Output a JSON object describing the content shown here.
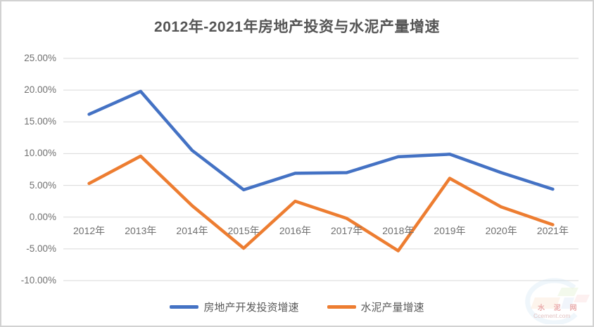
{
  "title": "2012年-2021年房地产投资与水泥产量增速",
  "chart_data": {
    "type": "line",
    "categories": [
      "2012年",
      "2013年",
      "2014年",
      "2015年",
      "2016年",
      "2017年",
      "2018年",
      "2019年",
      "2020年",
      "2021年"
    ],
    "series": [
      {
        "name": "房地产开发投资增速",
        "color": "#4472C4",
        "values": [
          16.2,
          19.8,
          10.5,
          4.3,
          6.9,
          7.0,
          9.5,
          9.9,
          7.0,
          4.4
        ]
      },
      {
        "name": "水泥产量增速",
        "color": "#ED7D31",
        "values": [
          5.3,
          9.6,
          1.8,
          -4.9,
          2.5,
          -0.2,
          -5.3,
          6.1,
          1.6,
          -1.2
        ]
      }
    ],
    "ylim": [
      -10,
      25
    ],
    "y_ticks": [
      {
        "value": 25,
        "label": "25.00%"
      },
      {
        "value": 20,
        "label": "20.00%"
      },
      {
        "value": 15,
        "label": "15.00%"
      },
      {
        "value": 10,
        "label": "10.00%"
      },
      {
        "value": 5,
        "label": "5.00%"
      },
      {
        "value": 0,
        "label": "0.00%"
      },
      {
        "value": -5,
        "label": "-5.00%"
      },
      {
        "value": -10,
        "label": "-10.00%"
      }
    ],
    "grid": true,
    "legend_position": "bottom",
    "xlabel": "",
    "ylabel": ""
  },
  "watermark": {
    "title": "水 泥 网",
    "domain": "Ccement.com"
  },
  "colors": {
    "grid": "#d9d9d9",
    "axis_text": "#707070",
    "title_text": "#555555",
    "background": "#ffffff"
  }
}
